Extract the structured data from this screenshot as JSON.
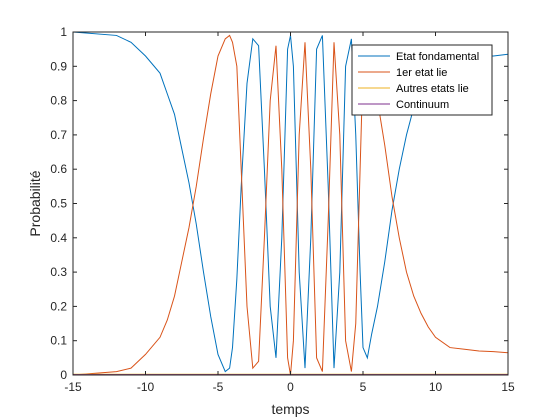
{
  "chart_data": {
    "type": "line",
    "title": "",
    "xlabel": "temps",
    "ylabel": "Probabilité",
    "xlim": [
      -15,
      15
    ],
    "ylim": [
      0,
      1
    ],
    "xticks": [
      -15,
      -10,
      -5,
      0,
      5,
      10,
      15
    ],
    "yticks": [
      0,
      0.1,
      0.2,
      0.3,
      0.4,
      0.5,
      0.6,
      0.7,
      0.8,
      0.9,
      1
    ],
    "grid": false,
    "legend_position": "top-right",
    "x": [
      -15,
      -12,
      -11,
      -10,
      -9,
      -8.5,
      -8,
      -7.5,
      -7,
      -6.5,
      -6,
      -5.5,
      -5,
      -4.5,
      -4.2,
      -4,
      -3.7,
      -3.4,
      -3,
      -2.6,
      -2.2,
      -1.8,
      -1.4,
      -1,
      -0.6,
      -0.2,
      0,
      0.2,
      0.6,
      1,
      1.4,
      1.8,
      2.2,
      2.6,
      3,
      3.4,
      3.8,
      4.2,
      4.5,
      4.8,
      5,
      5.3,
      5.6,
      6,
      6.5,
      7,
      7.5,
      8,
      8.5,
      9,
      9.5,
      10,
      11,
      12,
      13,
      14,
      15
    ],
    "series": [
      {
        "name": "Etat fondamental",
        "color": "#0072BD",
        "values": [
          1,
          0.99,
          0.97,
          0.93,
          0.88,
          0.82,
          0.76,
          0.66,
          0.56,
          0.44,
          0.3,
          0.17,
          0.06,
          0.01,
          0.02,
          0.08,
          0.28,
          0.55,
          0.85,
          0.98,
          0.96,
          0.6,
          0.2,
          0.05,
          0.4,
          0.95,
          0.99,
          0.9,
          0.3,
          0.02,
          0.4,
          0.95,
          0.99,
          0.55,
          0.02,
          0.3,
          0.9,
          0.98,
          0.7,
          0.3,
          0.08,
          0.05,
          0.12,
          0.2,
          0.33,
          0.48,
          0.6,
          0.7,
          0.78,
          0.83,
          0.87,
          0.9,
          0.92,
          0.925,
          0.93,
          0.93,
          0.935
        ]
      },
      {
        "name": "1er etat lie",
        "color": "#D95319",
        "values": [
          0,
          0.01,
          0.02,
          0.06,
          0.11,
          0.16,
          0.23,
          0.33,
          0.43,
          0.55,
          0.69,
          0.82,
          0.93,
          0.98,
          0.99,
          0.97,
          0.9,
          0.6,
          0.2,
          0.02,
          0.04,
          0.4,
          0.8,
          0.96,
          0.6,
          0.05,
          0,
          0.1,
          0.7,
          0.97,
          0.6,
          0.05,
          0.01,
          0.45,
          0.97,
          0.7,
          0.1,
          0.01,
          0.15,
          0.6,
          0.9,
          0.95,
          0.88,
          0.8,
          0.67,
          0.52,
          0.4,
          0.3,
          0.23,
          0.18,
          0.14,
          0.11,
          0.08,
          0.075,
          0.07,
          0.068,
          0.065
        ]
      },
      {
        "name": "Autres etats lie",
        "color": "#EDB120",
        "values": [
          0.002,
          0.002,
          0.002,
          0.002,
          0.002,
          0.002,
          0.002,
          0.002,
          0.002,
          0.002,
          0.002,
          0.002,
          0.002,
          0.002,
          0.002,
          0.002,
          0.002,
          0.002,
          0.002,
          0.002,
          0.002,
          0.002,
          0.002,
          0.002,
          0.002,
          0.002,
          0.002,
          0.002,
          0.002,
          0.002,
          0.002,
          0.002,
          0.002,
          0.002,
          0.002,
          0.002,
          0.002,
          0.002,
          0.002,
          0.002,
          0.002,
          0.002,
          0.002,
          0.002,
          0.002,
          0.002,
          0.002,
          0.002,
          0.002,
          0.002,
          0.002,
          0.002,
          0.002,
          0.002,
          0.002,
          0.002,
          0.002
        ]
      },
      {
        "name": "Continuum",
        "color": "#7E2F8E",
        "values": [
          0.001,
          0.001,
          0.001,
          0.001,
          0.001,
          0.001,
          0.001,
          0.001,
          0.001,
          0.001,
          0.001,
          0.001,
          0.001,
          0.001,
          0.001,
          0.001,
          0.001,
          0.001,
          0.001,
          0.001,
          0.001,
          0.001,
          0.001,
          0.001,
          0.001,
          0.001,
          0.001,
          0.001,
          0.001,
          0.001,
          0.001,
          0.001,
          0.001,
          0.001,
          0.001,
          0.001,
          0.001,
          0.001,
          0.001,
          0.001,
          0.001,
          0.001,
          0.001,
          0.001,
          0.001,
          0.001,
          0.001,
          0.001,
          0.001,
          0.001,
          0.001,
          0.001,
          0.001,
          0.001,
          0.001,
          0.001,
          0.001
        ]
      }
    ]
  }
}
